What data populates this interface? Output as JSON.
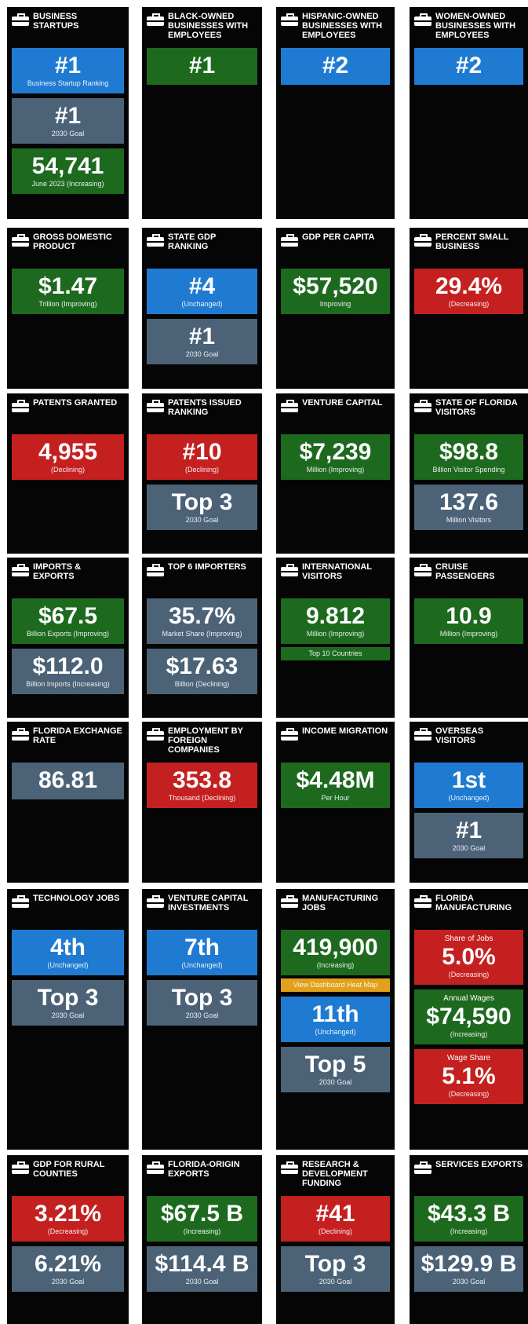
{
  "tiles": [
    {
      "title": "BUSINESS STARTUPS",
      "boxes": [
        {
          "value": "#1",
          "caption": "Business Startup Ranking",
          "color": "blue"
        },
        {
          "value": "#1",
          "caption": "2030 Goal",
          "color": "gray"
        },
        {
          "value": "54,741",
          "caption": "June 2023 (Increasing)",
          "color": "green"
        }
      ]
    },
    {
      "title": "BLACK-OWNED BUSINESSES WITH EMPLOYEES",
      "boxes": [
        {
          "value": "#1",
          "color": "green"
        }
      ]
    },
    {
      "title": "HISPANIC-OWNED BUSINESSES WITH EMPLOYEES",
      "boxes": [
        {
          "value": "#2",
          "color": "blue"
        }
      ]
    },
    {
      "title": "WOMEN-OWNED BUSINESSES WITH EMPLOYEES",
      "boxes": [
        {
          "value": "#2",
          "color": "blue"
        }
      ]
    },
    {
      "title": "GROSS DOMESTIC PRODUCT",
      "boxes": [
        {
          "value": "$1.47",
          "caption": "Trillion (Improving)",
          "color": "green"
        }
      ]
    },
    {
      "title": "STATE GDP RANKING",
      "boxes": [
        {
          "value": "#4",
          "caption": "(Unchanged)",
          "color": "blue"
        },
        {
          "value": "#1",
          "caption": "2030 Goal",
          "color": "gray"
        }
      ]
    },
    {
      "title": "GDP PER CAPITA",
      "boxes": [
        {
          "value": "$57,520",
          "caption": "Improving",
          "color": "green"
        }
      ]
    },
    {
      "title": "PERCENT SMALL BUSINESS",
      "boxes": [
        {
          "value": "29.4%",
          "caption": "(Decreasing)",
          "color": "red"
        }
      ]
    },
    {
      "title": "PATENTS GRANTED",
      "boxes": [
        {
          "value": "4,955",
          "caption": "(Declining)",
          "color": "red"
        }
      ]
    },
    {
      "title": "PATENTS ISSUED RANKING",
      "boxes": [
        {
          "value": "#10",
          "caption": "(Declining)",
          "color": "red"
        },
        {
          "value": "Top 3",
          "caption": "2030 Goal",
          "color": "gray"
        }
      ]
    },
    {
      "title": "VENTURE CAPITAL",
      "boxes": [
        {
          "value": "$7,239",
          "caption": "Million (Improving)",
          "color": "green"
        }
      ]
    },
    {
      "title": "STATE OF FLORIDA VISITORS",
      "boxes": [
        {
          "value": "$98.8",
          "caption": "Billion Visitor Spending",
          "color": "green"
        },
        {
          "value": "137.6",
          "caption": "Million Visitors",
          "color": "gray"
        }
      ]
    },
    {
      "title": "IMPORTS & EXPORTS",
      "boxes": [
        {
          "value": "$67.5",
          "caption": "Billion Exports (Improving)",
          "color": "green"
        },
        {
          "value": "$112.0",
          "caption": "Billion Imports (Increasing)",
          "color": "gray"
        }
      ]
    },
    {
      "title": "TOP 6 IMPORTERS",
      "boxes": [
        {
          "value": "35.7%",
          "caption": "Market Share (Improving)",
          "color": "gray"
        },
        {
          "value": "$17.63",
          "caption": "Billion (Declining)",
          "color": "gray"
        }
      ]
    },
    {
      "title": "INTERNATIONAL VISITORS",
      "boxes": [
        {
          "value": "9.812",
          "caption": "Million (Improving)",
          "color": "green"
        },
        {
          "caption": "Top 10 Countries",
          "color": "green"
        }
      ]
    },
    {
      "title": "CRUISE PASSENGERS",
      "boxes": [
        {
          "value": "10.9",
          "caption": "Million (Improving)",
          "color": "green"
        }
      ]
    },
    {
      "title": "FLORIDA EXCHANGE RATE",
      "boxes": [
        {
          "value": "86.81",
          "color": "gray"
        }
      ]
    },
    {
      "title": "EMPLOYMENT BY FOREIGN COMPANIES",
      "boxes": [
        {
          "value": "353.8",
          "caption": "Thousand (Declining)",
          "color": "red"
        }
      ]
    },
    {
      "title": "INCOME MIGRATION",
      "boxes": [
        {
          "value": "$4.48M",
          "caption": "Per Hour",
          "color": "green"
        }
      ]
    },
    {
      "title": "OVERSEAS VISITORS",
      "boxes": [
        {
          "value": "1st",
          "caption": "(Unchanged)",
          "color": "blue"
        },
        {
          "value": "#1",
          "caption": "2030 Goal",
          "color": "gray"
        }
      ]
    },
    {
      "title": "TECHNOLOGY JOBS",
      "boxes": [
        {
          "value": "4th",
          "caption": "(Unchanged)",
          "color": "blue"
        },
        {
          "value": "Top 3",
          "caption": "2030 Goal",
          "color": "gray"
        }
      ]
    },
    {
      "title": "VENTURE CAPITAL INVESTMENTS",
      "boxes": [
        {
          "value": "7th",
          "caption": "(Unchanged)",
          "color": "blue"
        },
        {
          "value": "Top 3",
          "caption": "2030 Goal",
          "color": "gray"
        }
      ]
    },
    {
      "title": "MANUFACTURING JOBS",
      "boxes": [
        {
          "value": "419,900",
          "caption": "(Increasing)",
          "color": "green"
        },
        {
          "caption": "View Dashboard Heat Map",
          "color": "yellow"
        },
        {
          "value": "11th",
          "caption": "(Unchanged)",
          "color": "blue"
        },
        {
          "value": "Top 5",
          "caption": "2030 Goal",
          "color": "gray"
        }
      ]
    },
    {
      "title": "FLORIDA MANUFACTURING",
      "boxes": [
        {
          "label": "Share of Jobs",
          "value": "5.0%",
          "caption": "(Decreasing)",
          "color": "red"
        },
        {
          "label": "Annual Wages",
          "value": "$74,590",
          "caption": "(Increasing)",
          "color": "green"
        },
        {
          "label": "Wage Share",
          "value": "5.1%",
          "caption": "(Decreasing)",
          "color": "red"
        }
      ]
    },
    {
      "title": "GDP FOR RURAL COUNTIES",
      "boxes": [
        {
          "value": "3.21%",
          "caption": "(Decreasing)",
          "color": "red"
        },
        {
          "value": "6.21%",
          "caption": "2030 Goal",
          "color": "gray"
        }
      ]
    },
    {
      "title": "FLORIDA-ORIGIN EXPORTS",
      "boxes": [
        {
          "value": "$67.5 B",
          "caption": "(Increasing)",
          "color": "green"
        },
        {
          "value": "$114.4 B",
          "caption": "2030 Goal",
          "color": "gray"
        }
      ]
    },
    {
      "title": "RESEARCH & DEVELOPMENT FUNDING",
      "boxes": [
        {
          "value": "#41",
          "caption": "(Declining)",
          "color": "red"
        },
        {
          "value": "Top 3",
          "caption": "2030 Goal",
          "color": "gray"
        }
      ]
    },
    {
      "title": "SERVICES EXPORTS",
      "boxes": [
        {
          "value": "$43.3 B",
          "caption": "(Increasing)",
          "color": "green"
        },
        {
          "value": "$129.9 B",
          "caption": "2030 Goal",
          "color": "gray"
        }
      ]
    }
  ]
}
